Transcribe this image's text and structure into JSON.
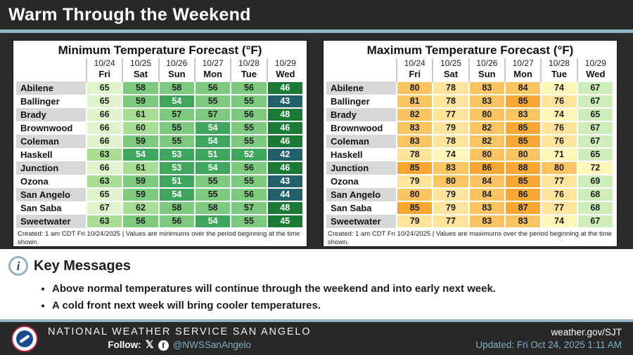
{
  "header": {
    "title": "Warm Through the Weekend"
  },
  "chart_data": [
    {
      "type": "table",
      "title": "Minimum Temperature Forecast (°F)",
      "columns_dates": [
        "10/24",
        "10/25",
        "10/26",
        "10/27",
        "10/28",
        "10/29"
      ],
      "columns_days": [
        "Fri",
        "Sat",
        "Sun",
        "Mon",
        "Tue",
        "Wed"
      ],
      "rows": [
        {
          "city": "Abilene",
          "values": [
            65,
            58,
            58,
            56,
            56,
            46
          ]
        },
        {
          "city": "Ballinger",
          "values": [
            65,
            59,
            54,
            55,
            55,
            43
          ]
        },
        {
          "city": "Brady",
          "values": [
            66,
            61,
            57,
            57,
            56,
            48
          ]
        },
        {
          "city": "Brownwood",
          "values": [
            66,
            60,
            55,
            54,
            55,
            46
          ]
        },
        {
          "city": "Coleman",
          "values": [
            66,
            59,
            55,
            54,
            55,
            46
          ]
        },
        {
          "city": "Haskell",
          "values": [
            63,
            54,
            53,
            51,
            52,
            42
          ]
        },
        {
          "city": "Junction",
          "values": [
            66,
            61,
            53,
            54,
            56,
            46
          ]
        },
        {
          "city": "Ozona",
          "values": [
            63,
            59,
            51,
            55,
            55,
            43
          ]
        },
        {
          "city": "San Angelo",
          "values": [
            65,
            59,
            54,
            55,
            56,
            44
          ]
        },
        {
          "city": "San Saba",
          "values": [
            67,
            62,
            58,
            58,
            57,
            48
          ]
        },
        {
          "city": "Sweetwater",
          "values": [
            63,
            56,
            56,
            54,
            55,
            45
          ]
        }
      ],
      "footnote": "Created: 1 am CDT Fri 10/24/2025  |  Values are minimums over the period beginning at the time shown.",
      "color_scale": [
        {
          "from": 65,
          "to": 69,
          "bg": "#DFF3CC",
          "fg": "#1E1E1E"
        },
        {
          "from": 60,
          "to": 64,
          "bg": "#A9DC95",
          "fg": "#1E1E1E"
        },
        {
          "from": 55,
          "to": 59,
          "bg": "#7DC97F",
          "fg": "#1E1E1E"
        },
        {
          "from": 50,
          "to": 54,
          "bg": "#3FA75D",
          "fg": "#FFFFFF"
        },
        {
          "from": 45,
          "to": 49,
          "bg": "#1B7B35",
          "fg": "#FFFFFF"
        },
        {
          "from": 40,
          "to": 44,
          "bg": "#21606A",
          "fg": "#FFFFFF"
        }
      ]
    },
    {
      "type": "table",
      "title": "Maximum Temperature Forecast (°F)",
      "columns_dates": [
        "10/24",
        "10/25",
        "10/26",
        "10/27",
        "10/28",
        "10/29"
      ],
      "columns_days": [
        "Fri",
        "Sat",
        "Sun",
        "Mon",
        "Tue",
        "Wed"
      ],
      "rows": [
        {
          "city": "Abilene",
          "values": [
            80,
            78,
            83,
            84,
            74,
            67
          ]
        },
        {
          "city": "Ballinger",
          "values": [
            81,
            78,
            83,
            85,
            76,
            67
          ]
        },
        {
          "city": "Brady",
          "values": [
            82,
            77,
            80,
            83,
            74,
            65
          ]
        },
        {
          "city": "Brownwood",
          "values": [
            83,
            79,
            82,
            85,
            76,
            67
          ]
        },
        {
          "city": "Coleman",
          "values": [
            83,
            78,
            82,
            85,
            76,
            67
          ]
        },
        {
          "city": "Haskell",
          "values": [
            78,
            74,
            80,
            80,
            71,
            65
          ]
        },
        {
          "city": "Junction",
          "values": [
            85,
            83,
            86,
            88,
            80,
            72
          ]
        },
        {
          "city": "Ozona",
          "values": [
            79,
            80,
            84,
            85,
            77,
            69
          ]
        },
        {
          "city": "San Angelo",
          "values": [
            80,
            79,
            84,
            86,
            76,
            68
          ]
        },
        {
          "city": "San Saba",
          "values": [
            85,
            79,
            83,
            87,
            77,
            68
          ]
        },
        {
          "city": "Sweetwater",
          "values": [
            79,
            77,
            83,
            83,
            74,
            67
          ]
        }
      ],
      "footnote": "Created: 1 am CDT Fri 10/24/2025  |  Values are maximums over the period beginning at the time shown.",
      "color_scale": [
        {
          "from": 85,
          "to": 89,
          "bg": "#F6A733",
          "fg": "#1E1E1E"
        },
        {
          "from": 80,
          "to": 84,
          "bg": "#FAC463",
          "fg": "#1E1E1E"
        },
        {
          "from": 75,
          "to": 79,
          "bg": "#FCE49D",
          "fg": "#1E1E1E"
        },
        {
          "from": 70,
          "to": 74,
          "bg": "#FDF6B8",
          "fg": "#1E1E1E"
        },
        {
          "from": 65,
          "to": 69,
          "bg": "#CFEDBB",
          "fg": "#1E1E1E"
        }
      ]
    }
  ],
  "key_messages": {
    "heading": "Key Messages",
    "items": [
      "Above normal temperatures will continue through the weekend and into early next week.",
      "A cold front next week will bring cooler temperatures."
    ]
  },
  "footer": {
    "org": "NATIONAL WEATHER SERVICE SAN ANGELO",
    "follow_label": "Follow:",
    "handle": "@NWSSanAngelo",
    "url": "weather.gov/SJT",
    "updated": "Updated: Fri Oct 24, 2025 1:11 AM"
  },
  "colors": {
    "accent_teal": "#8FB9C5",
    "dark_bg": "#282828",
    "link_blue": "#7FB0C8"
  }
}
